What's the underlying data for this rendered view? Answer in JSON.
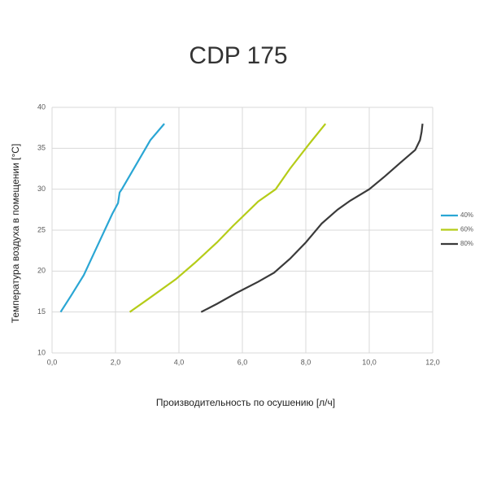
{
  "chart_data": {
    "type": "line",
    "title": "CDP 175",
    "x_label": "Производительность по осушению [л/ч]",
    "y_label": "Температура воздуха в помещении [°C]",
    "xlim": [
      0,
      12
    ],
    "xticks": [
      {
        "value": 0,
        "label": "0,0"
      },
      {
        "value": 2,
        "label": "2,0"
      },
      {
        "value": 4,
        "label": "4,0"
      },
      {
        "value": 6,
        "label": "6,0"
      },
      {
        "value": 8,
        "label": "8,0"
      },
      {
        "value": 10,
        "label": "10,0"
      },
      {
        "value": 12,
        "label": "12,0"
      }
    ],
    "ylim": [
      10,
      40
    ],
    "yticks": [
      10,
      15,
      20,
      25,
      30,
      35,
      40
    ],
    "grid": true,
    "legend": "right",
    "series": [
      {
        "name": "40%",
        "color": "#2aa6d4",
        "x": [
          0.27,
          0.6,
          1.0,
          1.3,
          1.6,
          1.9,
          2.08,
          2.13,
          2.2,
          2.5,
          2.8,
          3.1,
          3.54
        ],
        "values": [
          15,
          17,
          19.5,
          22,
          24.5,
          27,
          28.3,
          29.6,
          30,
          32,
          34,
          36,
          38
        ]
      },
      {
        "name": "60%",
        "color": "#b5cc18",
        "x": [
          2.45,
          3.0,
          3.9,
          4.5,
          5.2,
          5.7,
          6.5,
          7.05,
          7.5,
          8.1,
          8.62
        ],
        "values": [
          15,
          16.5,
          19,
          21,
          23.5,
          25.5,
          28.5,
          30,
          32.5,
          35.5,
          38
        ]
      },
      {
        "name": "80%",
        "color": "#3a3a3a",
        "x": [
          4.7,
          5.2,
          5.8,
          6.5,
          7.0,
          7.5,
          8.0,
          8.5,
          9.0,
          9.4,
          10.0,
          10.5,
          11.0,
          11.45,
          11.6,
          11.65,
          11.68
        ],
        "values": [
          15,
          16,
          17.3,
          18.7,
          19.8,
          21.5,
          23.5,
          25.8,
          27.5,
          28.6,
          30,
          31.6,
          33.3,
          34.8,
          36,
          37,
          38
        ]
      }
    ]
  }
}
